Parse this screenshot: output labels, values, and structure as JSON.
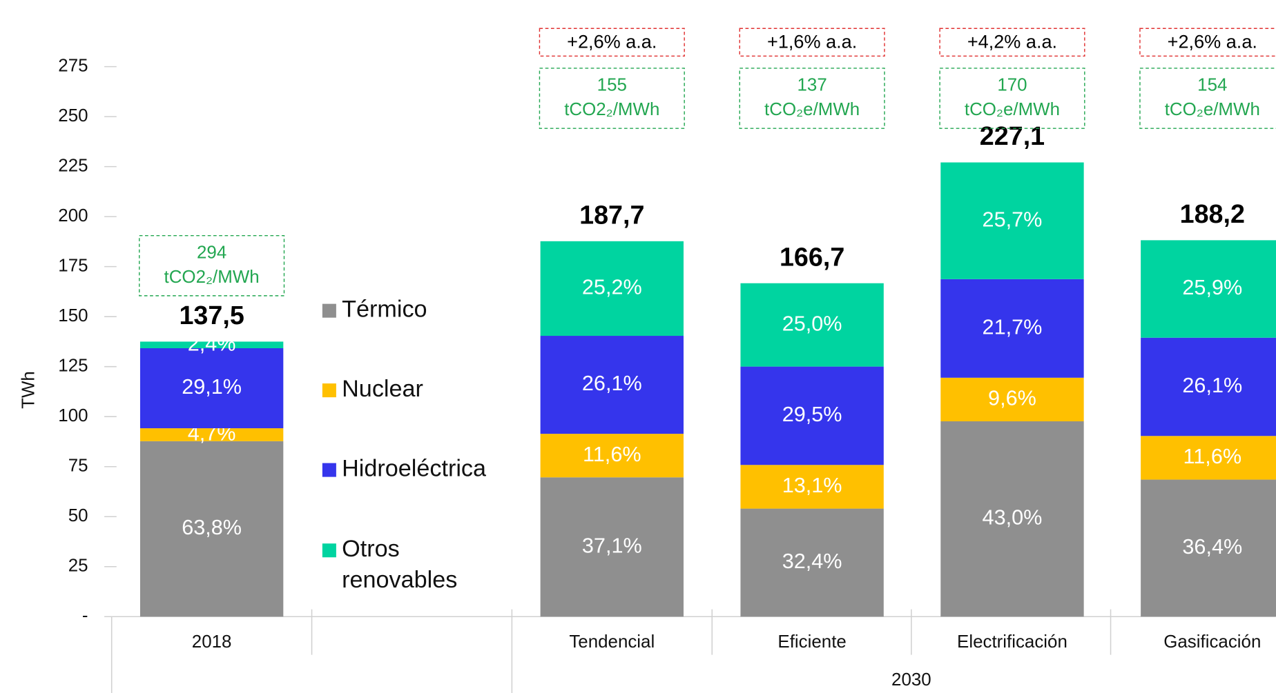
{
  "chart_data": {
    "type": "stacked-bar",
    "y_label": "TWh",
    "categories": [
      "2018",
      null,
      "Tendencial",
      "Eficiente",
      "Electrificación",
      "Gasificación"
    ],
    "group_label": "2030",
    "ylim": [
      0,
      275
    ],
    "yticks": [
      {
        "value": 0,
        "label": "-"
      },
      25,
      50,
      75,
      100,
      125,
      150,
      175,
      200,
      225,
      250,
      275
    ],
    "totals": {
      "values": [
        137.5,
        null,
        187.7,
        166.7,
        227.1,
        188.2
      ],
      "value_labels": [
        "137,5",
        null,
        "187,7",
        "166,7",
        "227,1",
        "188,2"
      ]
    },
    "series": [
      {
        "name": "Térmico",
        "color": "#8f8f8f",
        "values": [
          63.8,
          null,
          37.1,
          32.4,
          43.0,
          36.4
        ],
        "value_labels": [
          "63,8%",
          null,
          "37,1%",
          "32,4%",
          "43,0%",
          "36,4%"
        ]
      },
      {
        "name": "Nuclear",
        "color": "#ffc000",
        "values": [
          4.7,
          null,
          11.6,
          13.1,
          9.6,
          11.6
        ],
        "value_labels": [
          "4,7%",
          null,
          "11,6%",
          "13,1%",
          "9,6%",
          "11,6%"
        ]
      },
      {
        "name": "Hidroeléctrica",
        "color": "#3535ec",
        "values": [
          29.1,
          null,
          26.1,
          29.5,
          21.7,
          26.1
        ],
        "value_labels": [
          "29,1%",
          null,
          "26,1%",
          "29,5%",
          "21,7%",
          "26,1%"
        ]
      },
      {
        "name": "Otros renovables",
        "color": "#00d4a0",
        "values": [
          2.4,
          null,
          25.2,
          25.0,
          25.7,
          25.9
        ],
        "value_labels": [
          "2,4%",
          null,
          "25,2%",
          "25,0%",
          "25,7%",
          "25,9%"
        ]
      }
    ],
    "emissions": [
      {
        "value": 294,
        "unit": "tCO2₂/MWh"
      },
      null,
      {
        "value": 155,
        "unit": "tCO2₂/MWh"
      },
      {
        "value": 137,
        "unit": "tCO₂e/MWh"
      },
      {
        "value": 170,
        "unit": "tCO₂e/MWh"
      },
      {
        "value": 154,
        "unit": "tCO₂e/MWh"
      }
    ],
    "growth": [
      null,
      null,
      "+2,6% a.a.",
      "+1,6% a.a.",
      "+4,2% a.a.",
      "+2,6% a.a."
    ]
  }
}
